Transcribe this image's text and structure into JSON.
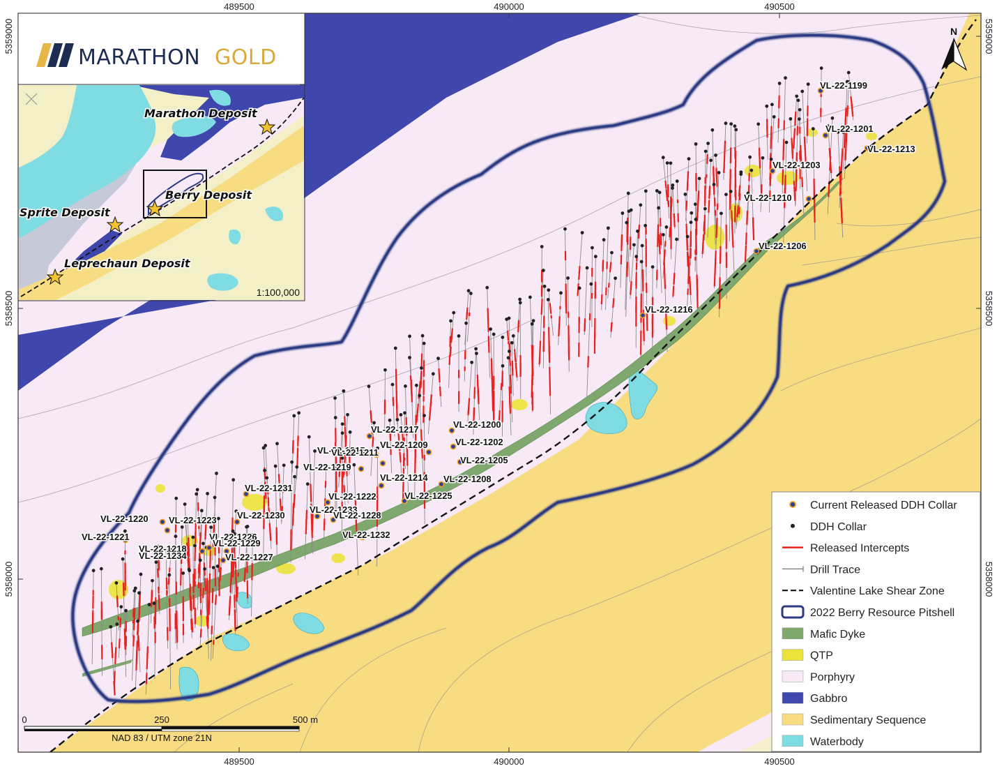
{
  "logo": {
    "word1": "MARATHON",
    "word2": "GOLD"
  },
  "top_coords": [
    "489500",
    "490000",
    "490500"
  ],
  "bottom_coords": [
    "489500",
    "490000",
    "490500"
  ],
  "left_coords": [
    "5359000",
    "5358500",
    "5358000"
  ],
  "right_coords": [
    "5359000",
    "5358500",
    "5358000"
  ],
  "north_label": "N",
  "inset": {
    "deposits": [
      "Marathon Deposit",
      "Berry Deposit",
      "Sprite Deposit",
      "Leprechaun Deposit"
    ],
    "scale": "1:100,000"
  },
  "scale_bar": {
    "ticks": [
      "0",
      "250",
      "500 m"
    ],
    "projection": "NAD 83 / UTM zone 21N"
  },
  "holes": {
    "current": [
      "VL-22-1199",
      "VL-22-1201",
      "VL-22-1213",
      "VL-22-1203",
      "VL-22-1210",
      "VL-22-1206",
      "VL-22-1216",
      "VL-22-1217",
      "VL-22-1200",
      "VL-22-1209",
      "VL-22-1202",
      "VL-22-1215",
      "VL-22-1211",
      "VL-22-1205",
      "VL-22-1219",
      "VL-22-1214",
      "VL-22-1208",
      "VL-22-1231",
      "VL-22-1222",
      "VL-22-1225",
      "VL-22-1233",
      "VL-22-1228",
      "VL-22-1220",
      "VL-22-1223",
      "VL-22-1230",
      "VL-22-1232",
      "VL-22-1221",
      "VL-22-1226",
      "VL-22-1229",
      "VL-22-1218",
      "VL-22-1234",
      "VL-22-1227"
    ]
  },
  "legend": [
    {
      "label": "Current Released DDH Collar",
      "symbol": "current-collar"
    },
    {
      "label": "DDH Collar",
      "symbol": "collar"
    },
    {
      "label": "Released Intercepts",
      "symbol": "intercept",
      "color": "#e8211f"
    },
    {
      "label": "Drill Trace",
      "symbol": "trace",
      "color": "#777777"
    },
    {
      "label": "Valentine Lake Shear Zone",
      "symbol": "shear",
      "color": "#111111"
    },
    {
      "label": "2022 Berry Resource Pitshell",
      "symbol": "pitshell",
      "color": "#2b3a82"
    },
    {
      "label": "Mafic Dyke",
      "symbol": "fill",
      "color": "#7fa86e"
    },
    {
      "label": "QTP",
      "symbol": "fill",
      "color": "#ece33a"
    },
    {
      "label": "Porphyry",
      "symbol": "fill",
      "color": "#f7e9f5"
    },
    {
      "label": "Gabbro",
      "symbol": "fill",
      "color": "#3f47ad"
    },
    {
      "label": "Sedimentary Sequence",
      "symbol": "fill",
      "color": "#f8dc82"
    },
    {
      "label": "Waterbody",
      "symbol": "fill",
      "color": "#7fdce3"
    }
  ]
}
